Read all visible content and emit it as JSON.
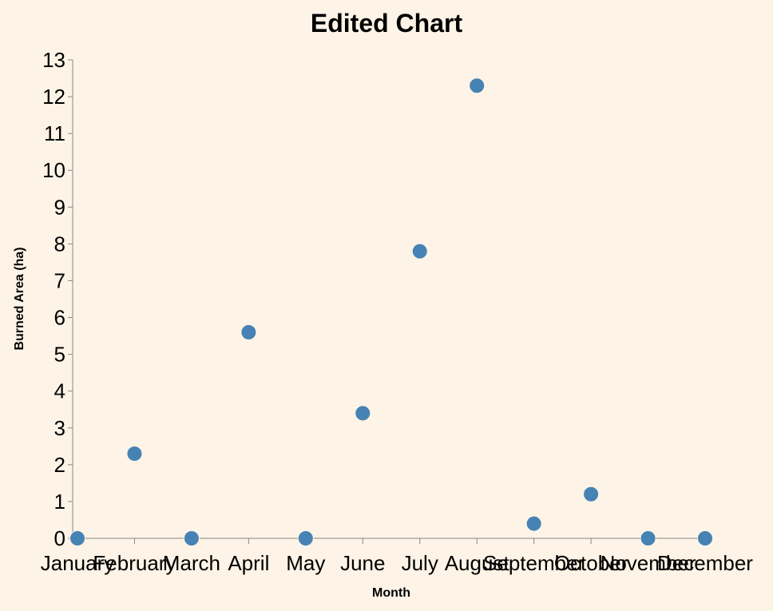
{
  "colors": {
    "background": "#fdf3e6",
    "point_fill": "#4682b4",
    "axis_line": "#888888",
    "text": "#000000"
  },
  "chart_data": {
    "type": "scatter",
    "title": "Edited Chart",
    "xlabel": "Month",
    "ylabel": "Burned Area (ha)",
    "categories": [
      "January",
      "February",
      "March",
      "April",
      "May",
      "June",
      "July",
      "August",
      "September",
      "October",
      "November",
      "December"
    ],
    "values": [
      0,
      2.3,
      0,
      5.6,
      0,
      3.4,
      7.8,
      12.3,
      0.4,
      1.2,
      0,
      0
    ],
    "ylim": [
      0,
      13
    ],
    "yticks": [
      0,
      1,
      2,
      3,
      4,
      5,
      6,
      7,
      8,
      9,
      10,
      11,
      12,
      13
    ],
    "grid": false,
    "legend": "none"
  }
}
